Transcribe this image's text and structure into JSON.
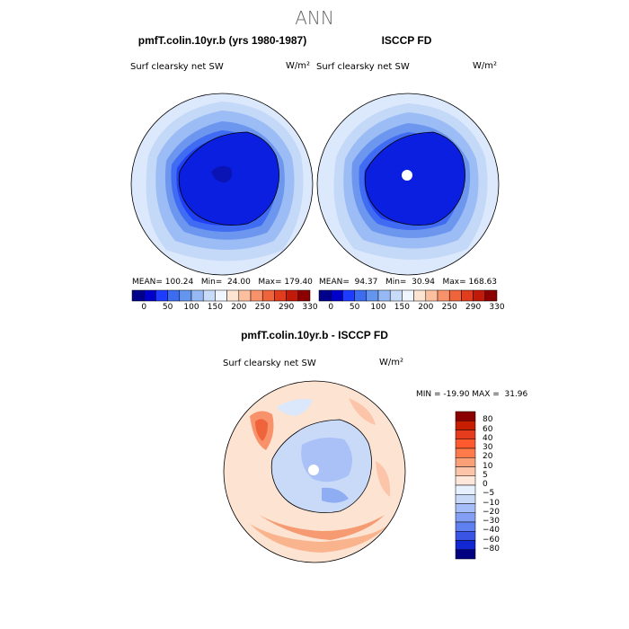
{
  "figure": {
    "suptitle": "ANN"
  },
  "panels": [
    {
      "title": "pmfT.colin.10yr.b (yrs 1980-1987)",
      "field": "Surf clearsky net SW",
      "units": "W/m²",
      "stats": "MEAN= 100.24   Min=  24.00   Max= 179.40"
    },
    {
      "title": "ISCCP FD",
      "field": "Surf clearsky net SW",
      "units": "W/m²",
      "stats": "MEAN=  94.37   Min=  30.94   Max= 168.63"
    },
    {
      "title": "pmfT.colin.10yr.b - ISCCP FD",
      "field": "Surf clearsky net SW",
      "units": "W/m²",
      "stats": "MIN = -19.90 MAX =  31.96"
    }
  ],
  "chart_data": [
    {
      "type": "heatmap",
      "title": "pmfT.colin.10yr.b (yrs 1980-1987)",
      "subtitle": "Surf clearsky net SW",
      "units": "W/m²",
      "projection": "south polar stereographic",
      "mean": 100.24,
      "min": 24.0,
      "max": 179.4,
      "colorbar": {
        "levels": [
          "0",
          "50",
          "100",
          "150",
          "200",
          "250",
          "290",
          "330"
        ],
        "colors": [
          "#00008b",
          "#0000cd",
          "#1e3cff",
          "#3c6cf0",
          "#6496f0",
          "#96b9f5",
          "#c8dcfa",
          "#f0f5ff",
          "#fde3d2",
          "#fcbfa0",
          "#f7926a",
          "#f0643c",
          "#e03c1e",
          "#c21a0a",
          "#8b0000"
        ]
      }
    },
    {
      "type": "heatmap",
      "title": "ISCCP FD",
      "subtitle": "Surf clearsky net SW",
      "units": "W/m²",
      "projection": "south polar stereographic",
      "mean": 94.37,
      "min": 30.94,
      "max": 168.63,
      "colorbar": {
        "levels": [
          "0",
          "50",
          "100",
          "150",
          "200",
          "250",
          "290",
          "330"
        ],
        "colors": [
          "#00008b",
          "#0000cd",
          "#1e3cff",
          "#3c6cf0",
          "#6496f0",
          "#96b9f5",
          "#c8dcfa",
          "#f0f5ff",
          "#fde3d2",
          "#fcbfa0",
          "#f7926a",
          "#f0643c",
          "#e03c1e",
          "#c21a0a",
          "#8b0000"
        ]
      }
    },
    {
      "type": "heatmap",
      "title": "pmfT.colin.10yr.b - ISCCP FD",
      "subtitle": "Surf clearsky net SW",
      "units": "W/m²",
      "projection": "south polar stereographic",
      "min": -19.9,
      "max": 31.96,
      "colorbar": {
        "levels": [
          "80",
          "60",
          "40",
          "30",
          "20",
          "10",
          "5",
          "0",
          "−5",
          "−10",
          "−20",
          "−30",
          "−40",
          "−60",
          "−80"
        ],
        "colors": [
          "#8b0000",
          "#c81e00",
          "#e63c1e",
          "#ff5a2d",
          "#ff7a4a",
          "#fa9f78",
          "#fcc4a8",
          "#fde6da",
          "#e6f0ff",
          "#c8d9f8",
          "#a5befa",
          "#829ff5",
          "#5f80f0",
          "#3a55e6",
          "#1226d2",
          "#000080"
        ]
      }
    }
  ]
}
